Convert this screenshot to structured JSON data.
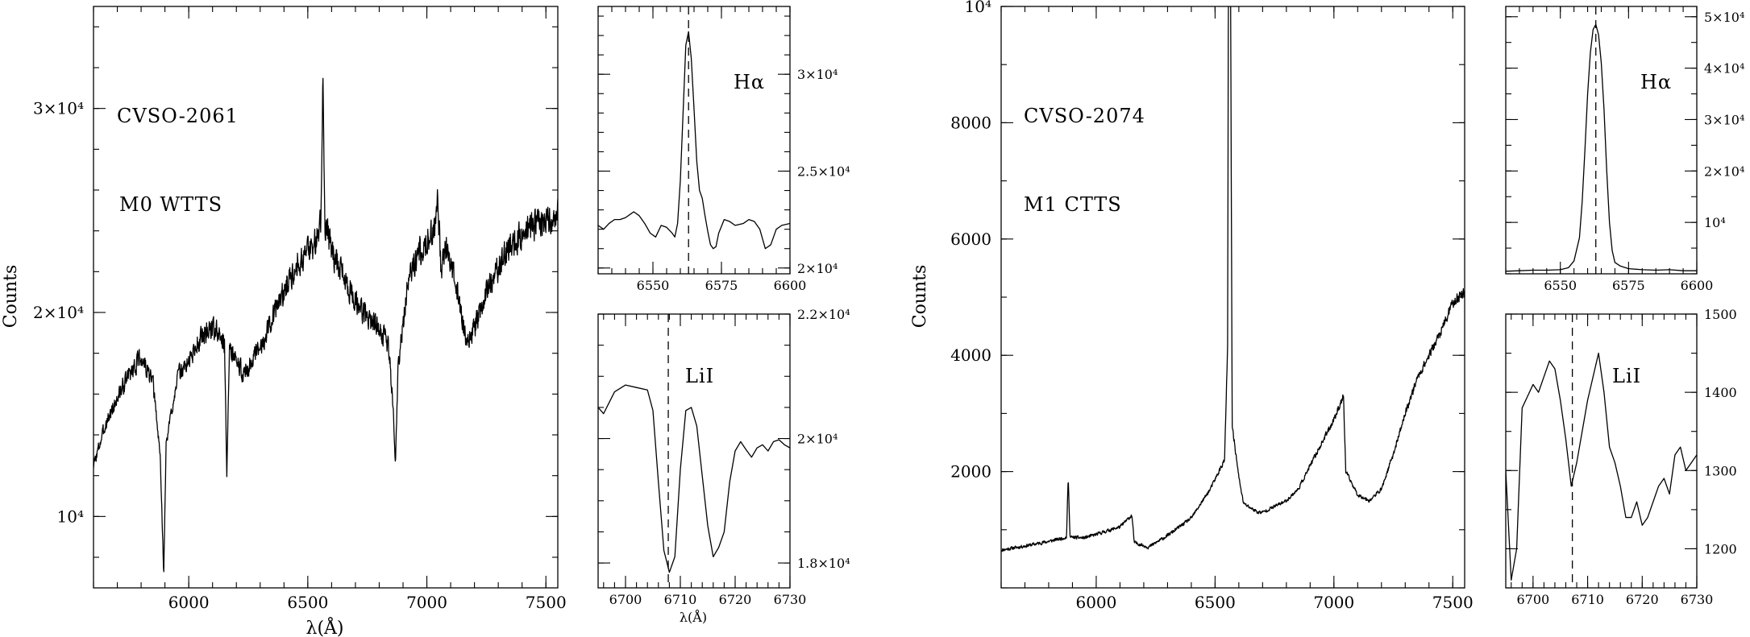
{
  "figure": {
    "ylabel": "Counts",
    "xlabel": "λ(Å)",
    "xlabel_small": "λ(Å)"
  },
  "chart_data": [
    {
      "id": "cvso2061-full",
      "type": "line",
      "title": "",
      "annotations": [
        "CVSO-2061",
        "M0 WTTS"
      ],
      "xlabel": "λ(Å)",
      "ylabel": "Counts",
      "xlim": [
        5600,
        7550
      ],
      "ylim": [
        6500,
        35000
      ],
      "x_ticks": [
        6000,
        6500,
        7000,
        7500
      ],
      "x_tick_labels": [
        "6000",
        "6500",
        "7000",
        "7500"
      ],
      "y_ticks": [
        10000,
        20000,
        30000
      ],
      "y_tick_labels": [
        "10⁴",
        "2×10⁴",
        "3×10⁴"
      ],
      "x_minor": 100,
      "y_minor": 2000,
      "grid": false,
      "profile": [
        [
          5600,
          12500
        ],
        [
          5650,
          14500
        ],
        [
          5700,
          15800
        ],
        [
          5750,
          17000
        ],
        [
          5800,
          17800
        ],
        [
          5850,
          16500
        ],
        [
          5880,
          13000
        ],
        [
          5895,
          7200
        ],
        [
          5905,
          13500
        ],
        [
          5950,
          16800
        ],
        [
          6000,
          17600
        ],
        [
          6050,
          18800
        ],
        [
          6100,
          19300
        ],
        [
          6150,
          18500
        ],
        [
          6160,
          12000
        ],
        [
          6170,
          18200
        ],
        [
          6230,
          17000
        ],
        [
          6300,
          18200
        ],
        [
          6350,
          19800
        ],
        [
          6400,
          21000
        ],
        [
          6450,
          22400
        ],
        [
          6500,
          23000
        ],
        [
          6540,
          23600
        ],
        [
          6555,
          24500
        ],
        [
          6563,
          32200
        ],
        [
          6571,
          24500
        ],
        [
          6600,
          23000
        ],
        [
          6650,
          21800
        ],
        [
          6700,
          20500
        ],
        [
          6750,
          19800
        ],
        [
          6800,
          19300
        ],
        [
          6840,
          18300
        ],
        [
          6860,
          15000
        ],
        [
          6868,
          12400
        ],
        [
          6880,
          17500
        ],
        [
          6920,
          21500
        ],
        [
          6950,
          22500
        ],
        [
          7000,
          23600
        ],
        [
          7030,
          24000
        ],
        [
          7045,
          25600
        ],
        [
          7060,
          22000
        ],
        [
          7080,
          23200
        ],
        [
          7120,
          21500
        ],
        [
          7170,
          18500
        ],
        [
          7200,
          19200
        ],
        [
          7250,
          21000
        ],
        [
          7300,
          22200
        ],
        [
          7350,
          23300
        ],
        [
          7400,
          23800
        ],
        [
          7450,
          24300
        ],
        [
          7500,
          24600
        ],
        [
          7550,
          24700
        ]
      ],
      "noise_amplitude": 1000,
      "noise_seed": 3
    },
    {
      "id": "cvso2061-halpha",
      "type": "line",
      "annotations": [
        "Hα"
      ],
      "reference_line_x": 6563,
      "xlim": [
        6530,
        6600
      ],
      "ylim": [
        19700,
        33500
      ],
      "x_ticks": [
        6550,
        6575,
        6600
      ],
      "x_tick_labels": [
        "6550",
        "6575",
        "6600"
      ],
      "y_ticks": [
        20000,
        25000,
        30000
      ],
      "y_tick_labels": [
        "2×10⁴",
        "2.5×10⁴",
        "3×10⁴"
      ],
      "x_minor": 5,
      "y_minor": 1000,
      "series": [
        [
          6530,
          22200
        ],
        [
          6532,
          22000
        ],
        [
          6534,
          22300
        ],
        [
          6536,
          22500
        ],
        [
          6538,
          22500
        ],
        [
          6540,
          22600
        ],
        [
          6542,
          22800
        ],
        [
          6543,
          22900
        ],
        [
          6545,
          22700
        ],
        [
          6547,
          22300
        ],
        [
          6549,
          21800
        ],
        [
          6551,
          21600
        ],
        [
          6553,
          22200
        ],
        [
          6555,
          22100
        ],
        [
          6557,
          21800
        ],
        [
          6558,
          21600
        ],
        [
          6559,
          22300
        ],
        [
          6560,
          24500
        ],
        [
          6561,
          28000
        ],
        [
          6562,
          31500
        ],
        [
          6563,
          32200
        ],
        [
          6564,
          30800
        ],
        [
          6565,
          28200
        ],
        [
          6566,
          25500
        ],
        [
          6567,
          24000
        ],
        [
          6568,
          23600
        ],
        [
          6569,
          22700
        ],
        [
          6570,
          21900
        ],
        [
          6571,
          21200
        ],
        [
          6572,
          21000
        ],
        [
          6573,
          21100
        ],
        [
          6574,
          21800
        ],
        [
          6576,
          22500
        ],
        [
          6578,
          22400
        ],
        [
          6580,
          22200
        ],
        [
          6583,
          22300
        ],
        [
          6585,
          22500
        ],
        [
          6587,
          22400
        ],
        [
          6589,
          22000
        ],
        [
          6591,
          21000
        ],
        [
          6593,
          21200
        ],
        [
          6595,
          22000
        ],
        [
          6597,
          22200
        ],
        [
          6600,
          22300
        ]
      ]
    },
    {
      "id": "cvso2061-lii",
      "type": "line",
      "annotations": [
        "LiI"
      ],
      "reference_line_x": 6707.8,
      "xlim": [
        6695,
        6730
      ],
      "ylim": [
        17600,
        22000
      ],
      "x_ticks": [
        6700,
        6710,
        6720,
        6730
      ],
      "x_tick_labels": [
        "6700",
        "6710",
        "6720",
        "6730"
      ],
      "y_ticks": [
        18000,
        20000,
        22000
      ],
      "y_tick_labels": [
        "1.8×10⁴",
        "2×10⁴",
        "2.2×10⁴"
      ],
      "x_minor": 2,
      "y_minor": 500,
      "series": [
        [
          6695,
          20500
        ],
        [
          6696,
          20400
        ],
        [
          6698,
          20750
        ],
        [
          6700,
          20860
        ],
        [
          6702,
          20820
        ],
        [
          6704,
          20780
        ],
        [
          6705,
          20450
        ],
        [
          6706,
          19300
        ],
        [
          6707,
          18200
        ],
        [
          6708,
          17850
        ],
        [
          6709,
          18100
        ],
        [
          6710,
          19500
        ],
        [
          6711,
          20450
        ],
        [
          6712,
          20500
        ],
        [
          6713,
          20200
        ],
        [
          6714,
          19400
        ],
        [
          6715,
          18600
        ],
        [
          6716,
          18100
        ],
        [
          6717,
          18250
        ],
        [
          6718,
          18500
        ],
        [
          6719,
          19300
        ],
        [
          6720,
          19800
        ],
        [
          6721,
          19950
        ],
        [
          6722,
          19820
        ],
        [
          6723,
          19700
        ],
        [
          6724,
          19850
        ],
        [
          6725,
          19900
        ],
        [
          6726,
          19800
        ],
        [
          6727,
          19950
        ],
        [
          6728,
          19980
        ],
        [
          6729,
          19900
        ],
        [
          6730,
          19850
        ]
      ]
    },
    {
      "id": "cvso2074-full",
      "type": "line",
      "annotations": [
        "CVSO-2074",
        "M1 CTTS"
      ],
      "xlabel": "",
      "ylabel": "Counts",
      "xlim": [
        5600,
        7550
      ],
      "ylim": [
        0,
        10000
      ],
      "x_ticks": [
        6000,
        6500,
        7000,
        7500
      ],
      "x_tick_labels": [
        "6000",
        "6500",
        "7000",
        "7500"
      ],
      "y_ticks": [
        2000,
        4000,
        6000,
        8000,
        10000
      ],
      "y_tick_labels": [
        "2000",
        "4000",
        "6000",
        "8000",
        "10⁴"
      ],
      "x_minor": 100,
      "y_minor": 1000,
      "grid": false,
      "profile": [
        [
          5600,
          650
        ],
        [
          5700,
          720
        ],
        [
          5800,
          800
        ],
        [
          5875,
          870
        ],
        [
          5882,
          1900
        ],
        [
          5890,
          870
        ],
        [
          5950,
          860
        ],
        [
          6000,
          920
        ],
        [
          6100,
          1050
        ],
        [
          6150,
          1250
        ],
        [
          6160,
          780
        ],
        [
          6220,
          700
        ],
        [
          6300,
          900
        ],
        [
          6400,
          1200
        ],
        [
          6480,
          1700
        ],
        [
          6540,
          2200
        ],
        [
          6553,
          4200
        ],
        [
          6556,
          10500
        ],
        [
          6565,
          10500
        ],
        [
          6572,
          2800
        ],
        [
          6600,
          1900
        ],
        [
          6620,
          1450
        ],
        [
          6680,
          1300
        ],
        [
          6700,
          1300
        ],
        [
          6750,
          1400
        ],
        [
          6800,
          1500
        ],
        [
          6850,
          1700
        ],
        [
          6900,
          2100
        ],
        [
          6950,
          2500
        ],
        [
          7000,
          2900
        ],
        [
          7040,
          3300
        ],
        [
          7050,
          2000
        ],
        [
          7100,
          1600
        ],
        [
          7150,
          1500
        ],
        [
          7200,
          1700
        ],
        [
          7250,
          2300
        ],
        [
          7300,
          3000
        ],
        [
          7350,
          3600
        ],
        [
          7400,
          4000
        ],
        [
          7450,
          4400
        ],
        [
          7500,
          4900
        ],
        [
          7550,
          5100
        ]
      ],
      "noise_amplitude": 150,
      "noise_seed": 11
    },
    {
      "id": "cvso2074-halpha",
      "type": "line",
      "annotations": [
        "Hα"
      ],
      "reference_line_x": 6563,
      "xlim": [
        6530,
        6600
      ],
      "ylim": [
        0,
        52000
      ],
      "x_ticks": [
        6550,
        6575,
        6600
      ],
      "x_tick_labels": [
        "6550",
        "6575",
        "6600"
      ],
      "y_ticks": [
        10000,
        20000,
        30000,
        40000,
        50000
      ],
      "y_tick_labels": [
        "10⁴",
        "2×10⁴",
        "3×10⁴",
        "4×10⁴",
        "5×10⁴"
      ],
      "x_minor": 5,
      "y_minor": 5000,
      "series": [
        [
          6530,
          500
        ],
        [
          6535,
          600
        ],
        [
          6540,
          700
        ],
        [
          6545,
          700
        ],
        [
          6550,
          800
        ],
        [
          6553,
          1200
        ],
        [
          6555,
          2500
        ],
        [
          6557,
          7000
        ],
        [
          6558,
          14000
        ],
        [
          6559,
          24000
        ],
        [
          6560,
          35000
        ],
        [
          6561,
          43000
        ],
        [
          6562,
          47500
        ],
        [
          6563,
          48500
        ],
        [
          6564,
          46500
        ],
        [
          6565,
          41000
        ],
        [
          6566,
          32000
        ],
        [
          6567,
          20000
        ],
        [
          6568,
          10000
        ],
        [
          6569,
          4500
        ],
        [
          6570,
          2200
        ],
        [
          6572,
          1500
        ],
        [
          6575,
          1000
        ],
        [
          6580,
          800
        ],
        [
          6585,
          700
        ],
        [
          6590,
          800
        ],
        [
          6595,
          600
        ],
        [
          6600,
          600
        ]
      ]
    },
    {
      "id": "cvso2074-lii",
      "type": "line",
      "annotations": [
        "LiI"
      ],
      "reference_line_x": 6707.2,
      "xlim": [
        6695,
        6730
      ],
      "ylim": [
        1150,
        1500
      ],
      "x_ticks": [
        6700,
        6710,
        6720,
        6730
      ],
      "x_tick_labels": [
        "6700",
        "6710",
        "6720",
        "6730"
      ],
      "y_ticks": [
        1200,
        1300,
        1400,
        1500
      ],
      "y_tick_labels": [
        "1200",
        "1300",
        "1400",
        "1500"
      ],
      "x_minor": 2,
      "y_minor": 50,
      "series": [
        [
          6695,
          1300
        ],
        [
          6696,
          1160
        ],
        [
          6697,
          1200
        ],
        [
          6698,
          1380
        ],
        [
          6699,
          1395
        ],
        [
          6700,
          1410
        ],
        [
          6701,
          1400
        ],
        [
          6702,
          1420
        ],
        [
          6703,
          1440
        ],
        [
          6704,
          1430
        ],
        [
          6705,
          1390
        ],
        [
          6706,
          1340
        ],
        [
          6707,
          1280
        ],
        [
          6708,
          1310
        ],
        [
          6709,
          1350
        ],
        [
          6710,
          1390
        ],
        [
          6711,
          1420
        ],
        [
          6712,
          1450
        ],
        [
          6713,
          1400
        ],
        [
          6714,
          1330
        ],
        [
          6715,
          1310
        ],
        [
          6716,
          1280
        ],
        [
          6717,
          1240
        ],
        [
          6718,
          1240
        ],
        [
          6719,
          1260
        ],
        [
          6720,
          1230
        ],
        [
          6721,
          1240
        ],
        [
          6722,
          1260
        ],
        [
          6723,
          1280
        ],
        [
          6724,
          1290
        ],
        [
          6725,
          1270
        ],
        [
          6726,
          1320
        ],
        [
          6727,
          1330
        ],
        [
          6728,
          1300
        ],
        [
          6729,
          1310
        ],
        [
          6730,
          1320
        ]
      ]
    }
  ]
}
